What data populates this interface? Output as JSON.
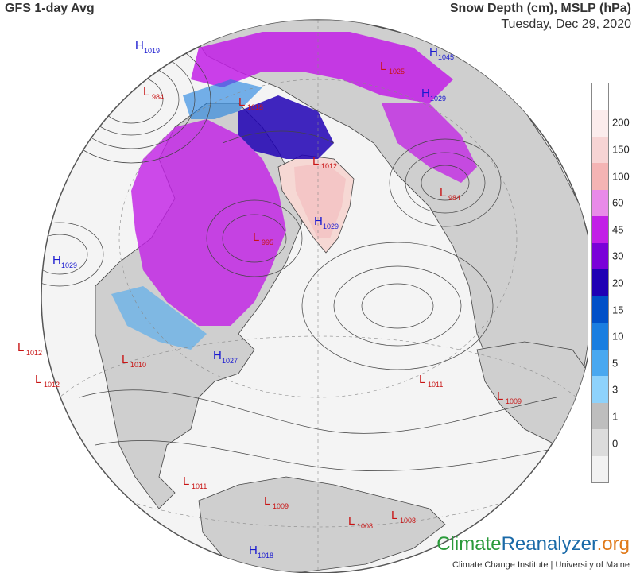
{
  "header": {
    "left_title": "GFS 1-day Avg",
    "right_title": "Snow Depth (cm), MSLP (hPa)",
    "date": "Tuesday, Dec 29, 2020"
  },
  "legend": {
    "ticks": [
      "200",
      "150",
      "100",
      "60",
      "45",
      "30",
      "20",
      "15",
      "10",
      "5",
      "3",
      "1",
      "0"
    ],
    "colors": [
      "#ffffff",
      "#fbecec",
      "#f7d4d4",
      "#f4b4b4",
      "#e88ae8",
      "#c21ee6",
      "#7a00d8",
      "#1f00b4",
      "#0050c8",
      "#1a7ee0",
      "#49a8f0",
      "#8ed2fb",
      "#bebebe",
      "#dcdcdc",
      "#f2f2f2"
    ]
  },
  "pressure_centers": [
    {
      "type": "H",
      "value": "1019"
    },
    {
      "type": "L",
      "value": "984"
    },
    {
      "type": "L",
      "value": "1018"
    },
    {
      "type": "H",
      "value": "1045"
    },
    {
      "type": "L",
      "value": "1025"
    },
    {
      "type": "L",
      "value": "1012"
    },
    {
      "type": "H",
      "value": "1029"
    },
    {
      "type": "L",
      "value": "984"
    },
    {
      "type": "H",
      "value": "1029"
    },
    {
      "type": "L",
      "value": "995"
    },
    {
      "type": "H",
      "value": "1029"
    },
    {
      "type": "L",
      "value": "1012"
    },
    {
      "type": "L",
      "value": "1012"
    },
    {
      "type": "L",
      "value": "1010"
    },
    {
      "type": "H",
      "value": "1027"
    },
    {
      "type": "L",
      "value": "1011"
    },
    {
      "type": "L",
      "value": "1009"
    },
    {
      "type": "L",
      "value": "1011"
    },
    {
      "type": "L",
      "value": "1009"
    },
    {
      "type": "L",
      "value": "1008"
    },
    {
      "type": "L",
      "value": "1008"
    },
    {
      "type": "H",
      "value": "1018"
    }
  ],
  "branding": {
    "part1": "Climate",
    "part2": "Reanalyzer",
    "part3": ".org",
    "credit": "Climate Change Institute | University of Maine"
  },
  "colors": {
    "high": "#1a1ad0",
    "low": "#c81414",
    "ocean": "#f4f4f4",
    "land": "#cfcfcf"
  }
}
